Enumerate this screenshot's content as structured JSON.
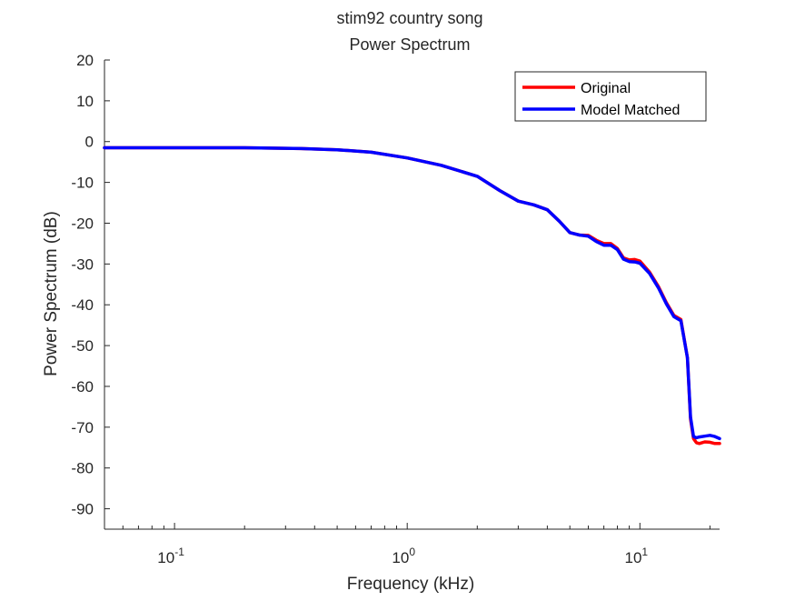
{
  "chart_data": {
    "type": "line",
    "title": "stim92 country song",
    "subtitle": "Power Spectrum",
    "xlabel": "Frequency (kHz)",
    "ylabel": "Power Spectrum (dB)",
    "xscale": "log",
    "xlim": [
      0.05,
      22
    ],
    "ylim": [
      -95,
      20
    ],
    "yticks": [
      20,
      10,
      0,
      -10,
      -20,
      -30,
      -40,
      -50,
      -60,
      -70,
      -80,
      -90
    ],
    "xticks": [
      {
        "value": 0.1,
        "base": "10",
        "exponent": "-1"
      },
      {
        "value": 1,
        "base": "10",
        "exponent": "0"
      },
      {
        "value": 10,
        "base": "10",
        "exponent": "1"
      }
    ],
    "grid": false,
    "legend_position": "top-right",
    "series": [
      {
        "name": "Original",
        "color": "#ff0000",
        "x": [
          0.05,
          0.1,
          0.2,
          0.35,
          0.5,
          0.7,
          1.0,
          1.4,
          2.0,
          2.5,
          3.0,
          3.5,
          4.0,
          4.5,
          5.0,
          5.5,
          6.0,
          6.5,
          7.0,
          7.5,
          8.0,
          8.5,
          9.0,
          9.5,
          10.0,
          11.0,
          12.0,
          13.0,
          14.0,
          15.0,
          16.0,
          16.5,
          17.0,
          17.5,
          18.0,
          19.0,
          20.0,
          21.0,
          22.0
        ],
        "y": [
          -1.5,
          -1.5,
          -1.5,
          -1.7,
          -2.0,
          -2.6,
          -4.0,
          -5.8,
          -8.5,
          -12.0,
          -14.6,
          -15.5,
          -16.7,
          -19.5,
          -22.3,
          -22.9,
          -23.0,
          -24.2,
          -25.0,
          -25.0,
          -26.2,
          -28.5,
          -29.0,
          -28.9,
          -29.3,
          -32.0,
          -35.5,
          -39.5,
          -42.6,
          -43.6,
          -53.0,
          -68.0,
          -72.8,
          -73.8,
          -74.0,
          -73.6,
          -73.7,
          -74.0,
          -74.0
        ]
      },
      {
        "name": "Model Matched",
        "color": "#0000ff",
        "x": [
          0.05,
          0.1,
          0.2,
          0.35,
          0.5,
          0.7,
          1.0,
          1.4,
          2.0,
          2.5,
          3.0,
          3.5,
          4.0,
          4.5,
          5.0,
          5.5,
          6.0,
          6.5,
          7.0,
          7.5,
          8.0,
          8.5,
          9.0,
          9.5,
          10.0,
          11.0,
          12.0,
          13.0,
          14.0,
          15.0,
          16.0,
          16.5,
          17.0,
          17.5,
          18.0,
          19.0,
          20.0,
          21.0,
          22.0
        ],
        "y": [
          -1.5,
          -1.5,
          -1.5,
          -1.7,
          -2.0,
          -2.6,
          -4.0,
          -5.8,
          -8.5,
          -12.0,
          -14.6,
          -15.5,
          -16.7,
          -19.5,
          -22.3,
          -22.9,
          -23.2,
          -24.5,
          -25.4,
          -25.4,
          -26.5,
          -28.8,
          -29.4,
          -29.5,
          -29.8,
          -32.3,
          -35.8,
          -39.8,
          -42.9,
          -43.9,
          -53.0,
          -67.5,
          -72.3,
          -72.6,
          -72.4,
          -72.2,
          -72.0,
          -72.3,
          -72.8
        ]
      }
    ]
  }
}
